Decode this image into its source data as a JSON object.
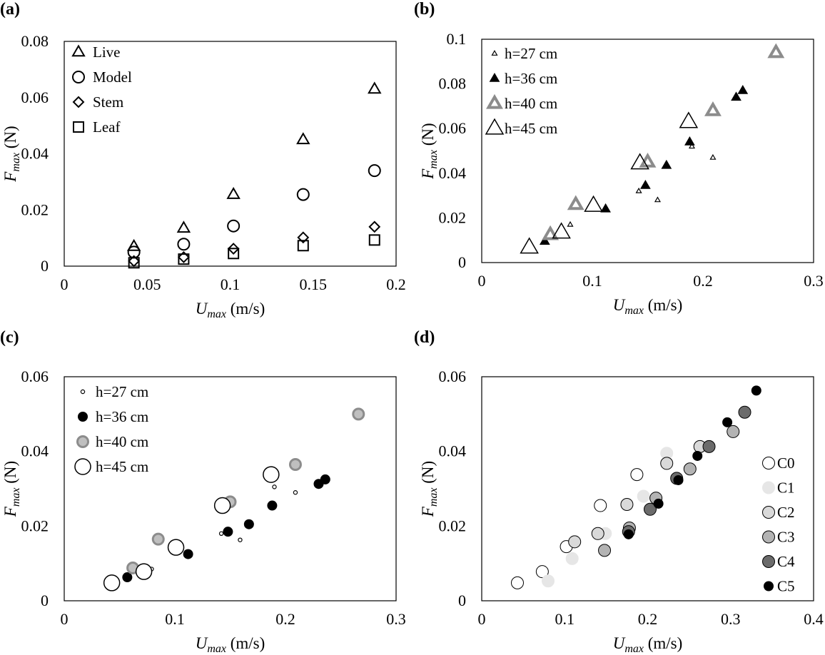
{
  "chart_data": [
    {
      "panel": "(a)",
      "type": "scatter",
      "xlabel": {
        "var": "U",
        "sub": "max",
        "unit": " (m/s)"
      },
      "ylabel": {
        "var": "F",
        "sub": "max",
        "unit": " (N)"
      },
      "xlim": [
        0,
        0.2
      ],
      "ylim": [
        0,
        0.08
      ],
      "xticks": [
        0,
        0.05,
        0.1,
        0.15,
        0.2
      ],
      "yticks": [
        0,
        0.02,
        0.04,
        0.06,
        0.08
      ],
      "xtick_labels": [
        "0",
        "0.05",
        "0.1",
        "0.15",
        "0.2"
      ],
      "ytick_labels": [
        "0",
        "0.02",
        "0.04",
        "0.06",
        "0.08"
      ],
      "legend_position": "top-left",
      "grid": false,
      "series": [
        {
          "name": "Live",
          "marker": "triangle",
          "points": [
            [
              0.042,
              0.007
            ],
            [
              0.072,
              0.0135
            ],
            [
              0.102,
              0.0255
            ],
            [
              0.144,
              0.045
            ],
            [
              0.187,
              0.063
            ]
          ]
        },
        {
          "name": "Model",
          "marker": "circle",
          "points": [
            [
              0.042,
              0.005
            ],
            [
              0.072,
              0.0078
            ],
            [
              0.102,
              0.0143
            ],
            [
              0.144,
              0.0255
            ],
            [
              0.187,
              0.034
            ]
          ]
        },
        {
          "name": "Stem",
          "marker": "diamond",
          "points": [
            [
              0.042,
              0.0018
            ],
            [
              0.072,
              0.0032
            ],
            [
              0.102,
              0.0062
            ],
            [
              0.144,
              0.0102
            ],
            [
              0.187,
              0.014
            ]
          ]
        },
        {
          "name": "Leaf",
          "marker": "square",
          "points": [
            [
              0.042,
              0.0012
            ],
            [
              0.072,
              0.0025
            ],
            [
              0.102,
              0.0045
            ],
            [
              0.144,
              0.0073
            ],
            [
              0.187,
              0.0093
            ]
          ]
        }
      ]
    },
    {
      "panel": "(b)",
      "type": "scatter",
      "xlabel": {
        "var": "U",
        "sub": "max",
        "unit": " (m/s)"
      },
      "ylabel": {
        "var": "F",
        "sub": "max",
        "unit": " (N)"
      },
      "xlim": [
        0,
        0.3
      ],
      "ylim": [
        0,
        0.1
      ],
      "xticks": [
        0,
        0.1,
        0.2,
        0.3
      ],
      "yticks": [
        0,
        0.02,
        0.04,
        0.06,
        0.08,
        0.1
      ],
      "xtick_labels": [
        "0",
        "0.1",
        "0.2",
        "0.3"
      ],
      "ytick_labels": [
        "0",
        "0.02",
        "0.04",
        "0.06",
        "0.08",
        "0.1"
      ],
      "legend_position": "top-left",
      "grid": false,
      "series": [
        {
          "name": "h=27 cm",
          "marker": "triangle",
          "style": "open-small",
          "points": [
            [
              0.08,
              0.017
            ],
            [
              0.142,
              0.032
            ],
            [
              0.159,
              0.028
            ],
            [
              0.19,
              0.052
            ],
            [
              0.209,
              0.047
            ]
          ]
        },
        {
          "name": "h=36 cm",
          "marker": "triangle",
          "style": "filled-black",
          "points": [
            [
              0.057,
              0.0095
            ],
            [
              0.112,
              0.024
            ],
            [
              0.148,
              0.0345
            ],
            [
              0.167,
              0.0435
            ],
            [
              0.188,
              0.054
            ],
            [
              0.23,
              0.074
            ],
            [
              0.236,
              0.077
            ]
          ]
        },
        {
          "name": "h=40 cm",
          "marker": "triangle",
          "style": "open-gray-thick",
          "points": [
            [
              0.062,
              0.0125
            ],
            [
              0.085,
              0.026
            ],
            [
              0.15,
              0.045
            ],
            [
              0.209,
              0.068
            ],
            [
              0.266,
              0.094
            ]
          ]
        },
        {
          "name": "h=45 cm",
          "marker": "triangle",
          "style": "open-large",
          "points": [
            [
              0.043,
              0.0068
            ],
            [
              0.072,
              0.0135
            ],
            [
              0.101,
              0.0255
            ],
            [
              0.143,
              0.0445
            ],
            [
              0.187,
              0.063
            ]
          ]
        }
      ]
    },
    {
      "panel": "(c)",
      "type": "scatter",
      "xlabel": {
        "var": "U",
        "sub": "max",
        "unit": " (m/s)"
      },
      "ylabel": {
        "var": "F",
        "sub": "max",
        "unit": " (N)"
      },
      "xlim": [
        0,
        0.3
      ],
      "ylim": [
        0,
        0.06
      ],
      "xticks": [
        0,
        0.1,
        0.2,
        0.3
      ],
      "yticks": [
        0,
        0.02,
        0.04,
        0.06
      ],
      "xtick_labels": [
        "0",
        "0.1",
        "0.2",
        "0.3"
      ],
      "ytick_labels": [
        "0",
        "0.02",
        "0.04",
        "0.06"
      ],
      "legend_position": "top-left",
      "grid": false,
      "series": [
        {
          "name": "h=27 cm",
          "marker": "circle",
          "style": "open-small",
          "points": [
            [
              0.079,
              0.0085
            ],
            [
              0.142,
              0.018
            ],
            [
              0.159,
              0.0163
            ],
            [
              0.19,
              0.0305
            ],
            [
              0.209,
              0.029
            ]
          ]
        },
        {
          "name": "h=36 cm",
          "marker": "circle",
          "style": "filled-black",
          "points": [
            [
              0.057,
              0.0063
            ],
            [
              0.112,
              0.0125
            ],
            [
              0.148,
              0.0185
            ],
            [
              0.167,
              0.0205
            ],
            [
              0.188,
              0.0255
            ],
            [
              0.23,
              0.0313
            ],
            [
              0.236,
              0.0325
            ]
          ]
        },
        {
          "name": "h=40 cm",
          "marker": "circle",
          "style": "gray",
          "points": [
            [
              0.062,
              0.0088
            ],
            [
              0.085,
              0.0165
            ],
            [
              0.15,
              0.0265
            ],
            [
              0.209,
              0.0365
            ],
            [
              0.266,
              0.05
            ]
          ]
        },
        {
          "name": "h=45 cm",
          "marker": "circle",
          "style": "open-large",
          "points": [
            [
              0.043,
              0.0048
            ],
            [
              0.072,
              0.0078
            ],
            [
              0.101,
              0.0143
            ],
            [
              0.143,
              0.0255
            ],
            [
              0.187,
              0.0338
            ]
          ]
        }
      ]
    },
    {
      "panel": "(d)",
      "type": "scatter",
      "xlabel": {
        "var": "U",
        "sub": "max",
        "unit": " (m/s)"
      },
      "ylabel": {
        "var": "F",
        "sub": "max",
        "unit": " (N)"
      },
      "xlim": [
        0,
        0.4
      ],
      "ylim": [
        0,
        0.06
      ],
      "xticks": [
        0,
        0.1,
        0.2,
        0.3,
        0.4
      ],
      "yticks": [
        0,
        0.02,
        0.04,
        0.06
      ],
      "xtick_labels": [
        "0",
        "0.1",
        "0.2",
        "0.3",
        "0.4"
      ],
      "ytick_labels": [
        "0",
        "0.02",
        "0.04",
        "0.06"
      ],
      "legend_position": "right",
      "grid": false,
      "series": [
        {
          "name": "C0",
          "marker": "circle",
          "fill": "#ffffff",
          "stroke": "#000000",
          "points": [
            [
              0.043,
              0.0048
            ],
            [
              0.073,
              0.0078
            ],
            [
              0.102,
              0.0145
            ],
            [
              0.143,
              0.0255
            ],
            [
              0.187,
              0.0338
            ]
          ]
        },
        {
          "name": "C1",
          "marker": "circle",
          "fill": "#e6e6e6",
          "stroke": "#e6e6e6",
          "points": [
            [
              0.08,
              0.0053
            ],
            [
              0.109,
              0.0113
            ],
            [
              0.149,
              0.018
            ],
            [
              0.195,
              0.028
            ],
            [
              0.223,
              0.0395
            ]
          ]
        },
        {
          "name": "C2",
          "marker": "circle",
          "fill": "#d9d9d9",
          "stroke": "#000000",
          "points": [
            [
              0.112,
              0.0158
            ],
            [
              0.14,
              0.018
            ],
            [
              0.175,
              0.0258
            ],
            [
              0.223,
              0.0368
            ],
            [
              0.263,
              0.0413
            ]
          ]
        },
        {
          "name": "C3",
          "marker": "circle",
          "fill": "#b3b3b3",
          "stroke": "#000000",
          "points": [
            [
              0.148,
              0.0135
            ],
            [
              0.178,
              0.0195
            ],
            [
              0.21,
              0.0275
            ],
            [
              0.251,
              0.0353
            ],
            [
              0.303,
              0.0453
            ]
          ]
        },
        {
          "name": "C4",
          "marker": "circle",
          "fill": "#6b6b6b",
          "stroke": "#000000",
          "points": [
            [
              0.177,
              0.0185
            ],
            [
              0.203,
              0.0245
            ],
            [
              0.235,
              0.0328
            ],
            [
              0.274,
              0.0413
            ],
            [
              0.317,
              0.0505
            ]
          ]
        },
        {
          "name": "C5",
          "marker": "circle",
          "fill": "#000000",
          "stroke": "#000000",
          "points": [
            [
              0.177,
              0.0178
            ],
            [
              0.213,
              0.026
            ],
            [
              0.237,
              0.0323
            ],
            [
              0.26,
              0.0388
            ],
            [
              0.296,
              0.0478
            ],
            [
              0.331,
              0.0563
            ]
          ]
        }
      ]
    }
  ]
}
